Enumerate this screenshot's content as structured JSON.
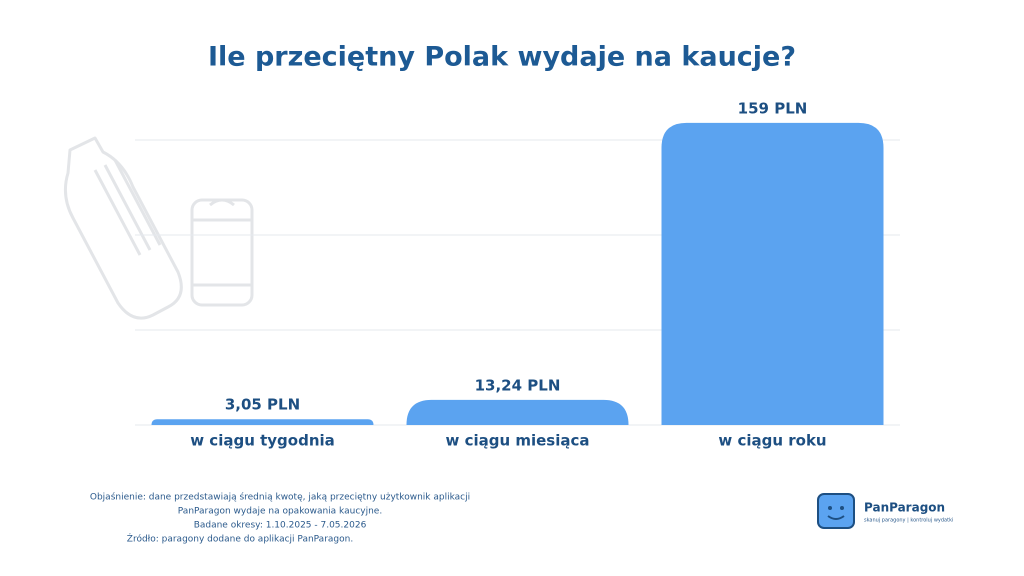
{
  "chart_data": {
    "type": "bar",
    "title": "Ile przeciętny Polak wydaje na kaucje?",
    "categories": [
      "w ciągu tygodnia",
      "w ciągu miesiąca",
      "w ciągu roku"
    ],
    "values": [
      3.05,
      13.24,
      159
    ],
    "value_labels": [
      "3,05 PLN",
      "13,24 PLN",
      "159 PLN"
    ],
    "color": "#5ba3f0",
    "ylim": [
      0,
      160
    ],
    "yticks": [
      0,
      50,
      100,
      150
    ],
    "grid": true,
    "notes": [
      "Objaśnienie: dane przedstawiają średnią kwotę, jaką przeciętny użytkownik aplikacji",
      "PanParagon wydaje na opakowania kaucyjne.",
      "Badane okresy: 1.10.2025 - 7.05.2026",
      "Źródło: paragony dodane do aplikacji PanParagon."
    ],
    "logo": {
      "name": "PanParagon",
      "tagline": "skanuj paragony | kontroluj wydatki"
    }
  }
}
